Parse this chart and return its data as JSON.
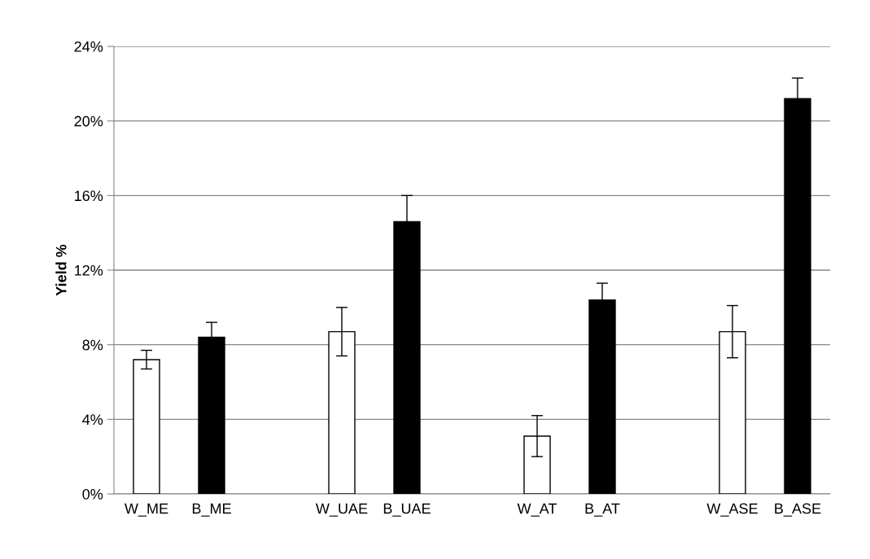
{
  "chart_data": {
    "type": "bar",
    "ylabel": "Yield %",
    "categories": [
      "W_ME",
      "B_ME",
      null,
      "W_UAE",
      "B_UAE",
      null,
      "W_AT",
      "B_AT",
      null,
      "W_ASE",
      "B_ASE"
    ],
    "values": [
      7.2,
      8.4,
      null,
      8.7,
      14.6,
      null,
      3.1,
      10.4,
      null,
      8.7,
      21.2
    ],
    "errors": [
      0.5,
      0.8,
      null,
      1.3,
      1.4,
      null,
      1.1,
      0.9,
      null,
      1.4,
      1.1
    ],
    "colors": [
      "#ffffff",
      "#000000",
      null,
      "#ffffff",
      "#000000",
      null,
      "#ffffff",
      "#000000",
      null,
      "#ffffff",
      "#000000"
    ],
    "ylim": [
      0,
      24
    ],
    "yticks": [
      {
        "value": 0,
        "label": "0%"
      },
      {
        "value": 4,
        "label": "4%"
      },
      {
        "value": 8,
        "label": "8%"
      },
      {
        "value": 12,
        "label": "12%"
      },
      {
        "value": 16,
        "label": "16%"
      },
      {
        "value": 20,
        "label": "20%"
      },
      {
        "value": 24,
        "label": "24%"
      }
    ],
    "grid": "y"
  }
}
